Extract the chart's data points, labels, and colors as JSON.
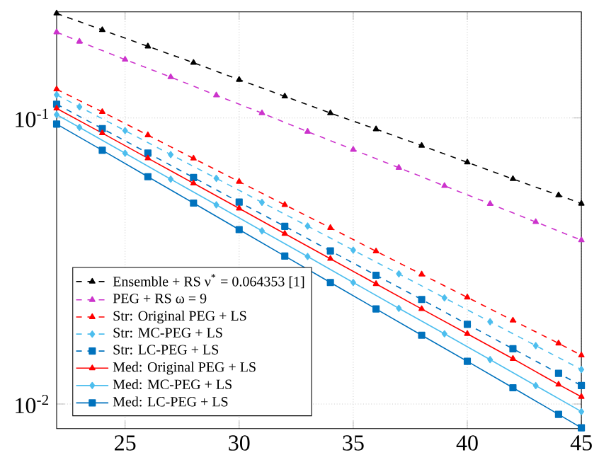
{
  "chart_data": {
    "type": "line",
    "log": "y",
    "grid": true,
    "legend": "bottom left",
    "xlim": [
      22,
      45
    ],
    "xticks": [
      25,
      30,
      35,
      40,
      45
    ],
    "ylim": [
      0.0082,
      0.235
    ],
    "yticks": [
      {
        "value": 0.1,
        "label": "10$^{-1}$"
      },
      {
        "value": 0.01,
        "label": "10$^{-2}$"
      }
    ],
    "series": [
      {
        "name": "Ensemble + RS ν$^{*}$ = 0.064353 [1]",
        "color": "#000000",
        "marker": "triangle",
        "line_style": "dashed",
        "x": [
          22,
          24,
          26,
          28,
          30,
          32,
          34,
          36,
          38,
          40,
          42,
          44,
          45
        ],
        "values": [
          0.232,
          0.203,
          0.178,
          0.156,
          0.136,
          0.119,
          0.104,
          0.0914,
          0.08,
          0.07,
          0.0612,
          0.0537,
          0.0502
        ]
      },
      {
        "name": "PEG + RS ω = 9",
        "color": "#cc33cc",
        "marker": "triangle",
        "line_style": "dashed",
        "x": [
          22,
          23,
          25,
          27,
          29,
          31,
          33,
          35,
          37,
          39,
          41,
          43,
          45
        ],
        "values": [
          0.1995,
          0.185,
          0.16,
          0.139,
          0.12,
          0.104,
          0.0896,
          0.0775,
          0.067,
          0.0579,
          0.0501,
          0.0433,
          0.0374
        ]
      },
      {
        "name": "Str: Original PEG + LS",
        "color": "#ff0000",
        "marker": "triangle",
        "line_style": "dashed",
        "x": [
          22,
          24,
          26,
          28,
          30,
          32,
          34,
          36,
          38,
          40,
          42,
          44,
          45
        ],
        "values": [
          0.126,
          0.105,
          0.0871,
          0.0722,
          0.0599,
          0.0497,
          0.0413,
          0.0342,
          0.0284,
          0.0236,
          0.0196,
          0.0163,
          0.0148
        ]
      },
      {
        "name": "Str: MC-PEG + LS",
        "color": "#4dbeee",
        "marker": "diamond",
        "line_style": "dashed",
        "x": [
          22,
          23,
          25,
          27,
          29,
          31,
          33,
          35,
          37,
          39,
          41,
          43,
          45
        ],
        "values": [
          0.1205,
          0.1094,
          0.0903,
          0.0745,
          0.0615,
          0.0507,
          0.0419,
          0.0345,
          0.0285,
          0.0235,
          0.0194,
          0.016,
          0.0132
        ]
      },
      {
        "name": "Str: LC-PEG + LS",
        "color": "#0072bd",
        "marker": "square",
        "line_style": "dashed",
        "x": [
          22,
          24,
          26,
          28,
          30,
          32,
          34,
          36,
          38,
          40,
          42,
          44,
          45
        ],
        "values": [
          0.1117,
          0.0918,
          0.0754,
          0.0619,
          0.0508,
          0.0418,
          0.0343,
          0.0282,
          0.0232,
          0.019,
          0.0156,
          0.0128,
          0.0116
        ]
      },
      {
        "name": "Med: Original PEG + LS",
        "color": "#ff0000",
        "marker": "triangle",
        "line_style": "solid",
        "x": [
          22,
          24,
          26,
          28,
          30,
          32,
          34,
          36,
          38,
          40,
          42,
          44,
          45
        ],
        "values": [
          0.108,
          0.0885,
          0.0723,
          0.0591,
          0.0483,
          0.0394,
          0.0322,
          0.0263,
          0.0215,
          0.0176,
          0.0144,
          0.0117,
          0.0106
        ]
      },
      {
        "name": "Med: MC-PEG + LS",
        "color": "#4dbeee",
        "marker": "diamond",
        "line_style": "solid",
        "x": [
          22,
          23,
          25,
          27,
          29,
          31,
          33,
          35,
          37,
          39,
          41,
          43,
          45
        ],
        "values": [
          0.1027,
          0.0927,
          0.0753,
          0.0611,
          0.0497,
          0.0403,
          0.0328,
          0.0266,
          0.0216,
          0.0176,
          0.0143,
          0.0116,
          0.00941
        ]
      },
      {
        "name": "Med: LC-PEG + LS",
        "color": "#0072bd",
        "marker": "square",
        "line_style": "solid",
        "x": [
          22,
          24,
          26,
          28,
          30,
          32,
          34,
          36,
          38,
          40,
          42,
          44,
          45
        ],
        "values": [
          0.0952,
          0.0771,
          0.0623,
          0.0504,
          0.0407,
          0.0329,
          0.0266,
          0.0215,
          0.0174,
          0.0141,
          0.0114,
          0.0092,
          0.00826
        ]
      }
    ]
  }
}
